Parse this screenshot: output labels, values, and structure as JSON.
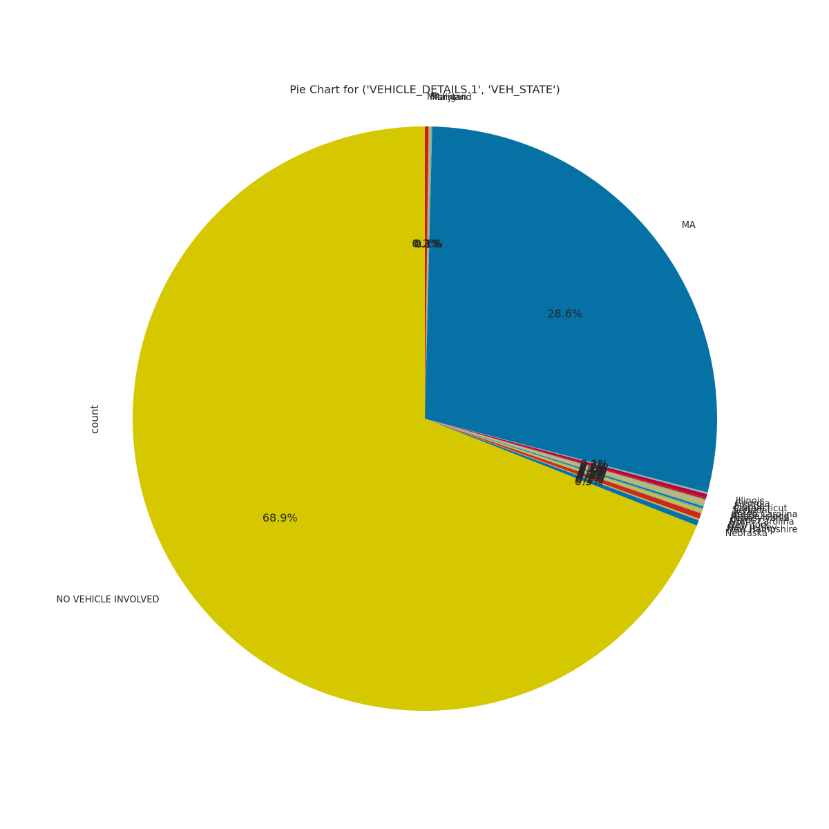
{
  "chart_data": {
    "type": "pie",
    "title": "Pie Chart for ('VEHICLE_DETAILS.1', 'VEH_STATE')",
    "ylabel": "count",
    "start_angle_deg": 90,
    "direction": "counterclockwise",
    "slices": [
      {
        "label": "NO VEHICLE INVOLVED",
        "value": 68.9,
        "pct_label": "68.9%",
        "color": "#d5c800"
      },
      {
        "label": "Nebraska",
        "value": 0.3,
        "pct_label": "0.3%",
        "color": "#0571a5"
      },
      {
        "label": "New Hampshire",
        "value": 0.1,
        "pct_label": "0.1%",
        "color": "#b5b76d"
      },
      {
        "label": "New Jersey",
        "value": 0.1,
        "pct_label": "0.1%",
        "color": "#c91d15"
      },
      {
        "label": "New York",
        "value": 0.2,
        "pct_label": "0.2%",
        "color": "#d42410"
      },
      {
        "label": "North Carolina",
        "value": 0.1,
        "pct_label": "0.1%",
        "color": "#9ab29a"
      },
      {
        "label": "Ohio",
        "value": 0.1,
        "pct_label": "0.1%",
        "color": "#d5c800"
      },
      {
        "label": "Pennsylvania",
        "value": 0.1,
        "pct_label": "0.1%",
        "color": "#8aa6a8"
      },
      {
        "label": "Rhode Island",
        "value": 0.1,
        "pct_label": "0.1%",
        "color": "#0571a5"
      },
      {
        "label": "South Carolina",
        "value": 0.1,
        "pct_label": "0.1%",
        "color": "#9ab29a"
      },
      {
        "label": "Texas",
        "value": 0.1,
        "pct_label": "0.1%",
        "color": "#b5b76d"
      },
      {
        "label": "Vermont",
        "value": 0.1,
        "pct_label": "0.1%",
        "color": "#b5b76d"
      },
      {
        "label": "Connecticut",
        "value": 0.1,
        "pct_label": "0.1%",
        "color": "#9ab29a"
      },
      {
        "label": "Florida",
        "value": 0.1,
        "pct_label": "0.1%",
        "color": "#c91d15"
      },
      {
        "label": "Georgia",
        "value": 0.2,
        "pct_label": "0.2%",
        "color": "#b5004b"
      },
      {
        "label": "Illinois",
        "value": 0.1,
        "pct_label": "0.1%",
        "color": "#9ab29a"
      },
      {
        "label": "MA",
        "value": 28.6,
        "pct_label": "28.6%",
        "color": "#0571a5"
      },
      {
        "label": "Maine",
        "value": 0.1,
        "pct_label": "0.1%",
        "color": "#8aa6a8"
      },
      {
        "label": "Maryland",
        "value": 0.1,
        "pct_label": "0.1%",
        "color": "#b5b76d"
      },
      {
        "label": "Michigan",
        "value": 0.2,
        "pct_label": "0.2%",
        "color": "#c91d15"
      }
    ]
  }
}
